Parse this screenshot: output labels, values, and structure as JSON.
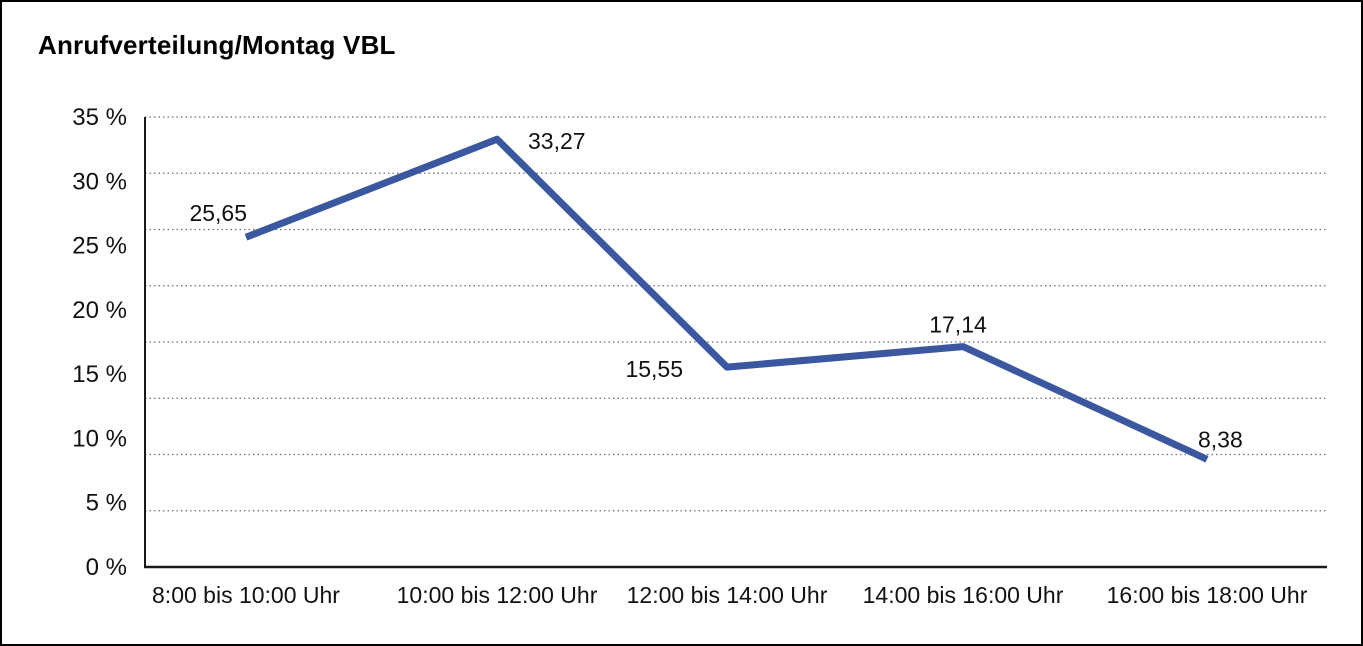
{
  "chart_data": {
    "type": "line",
    "title": "Anrufverteilung/Montag VBL",
    "categories": [
      "8:00 bis 10:00 Uhr",
      "10:00 bis 12:00 Uhr",
      "12:00 bis 14:00 Uhr",
      "14:00 bis 16:00 Uhr",
      "16:00 bis 18:00 Uhr"
    ],
    "values": [
      25.65,
      33.27,
      15.55,
      17.14,
      8.38
    ],
    "point_labels": [
      "25,65",
      "33,27",
      "15,55",
      "17,14",
      "8,38"
    ],
    "xlabel": "",
    "ylabel": "",
    "ylim": [
      0,
      35
    ],
    "yticks": [
      "35 %",
      "30 %",
      "25 %",
      "20 %",
      "15 %",
      "10 %",
      "5 %",
      "0 %"
    ],
    "legend": "none",
    "grid": {
      "horizontal": true,
      "style": "dotted",
      "dotted_line_count": 8,
      "note": "dotted gridlines are drawn at 1/8 spacing of plot height, slightly offset below the labeled tick levels"
    },
    "line_color": "#3a57a0",
    "line_width": 7
  }
}
